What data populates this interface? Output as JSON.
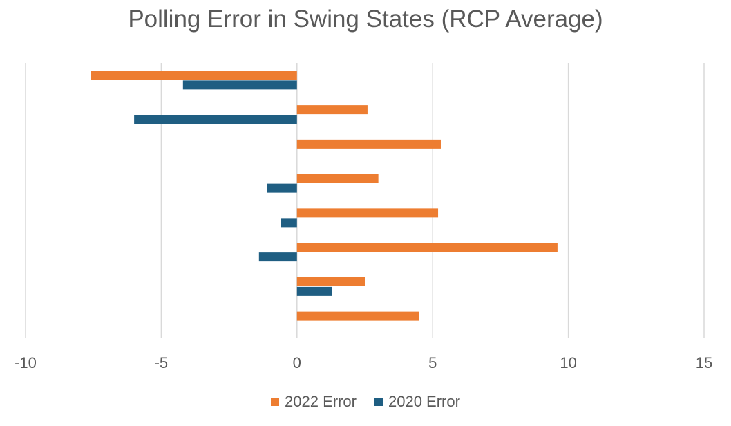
{
  "chart_data": {
    "type": "bar",
    "orientation": "horizontal",
    "title": "Polling Error in Swing States (RCP Average)",
    "xlabel": "",
    "ylabel": "",
    "xlim": [
      -10,
      15
    ],
    "xticks": [
      -10,
      -5,
      0,
      5,
      10,
      15
    ],
    "grid": true,
    "legend_position": "bottom",
    "series": [
      {
        "name": "2022 Error",
        "color": "#ED7D31",
        "values": [
          -7.6,
          2.6,
          5.3,
          3.0,
          5.2,
          9.6,
          2.5,
          4.5
        ]
      },
      {
        "name": "2020 Error",
        "color": "#1F5E82",
        "values": [
          -4.2,
          -6.0,
          null,
          -1.1,
          -0.6,
          -1.4,
          1.3,
          null
        ]
      }
    ]
  }
}
